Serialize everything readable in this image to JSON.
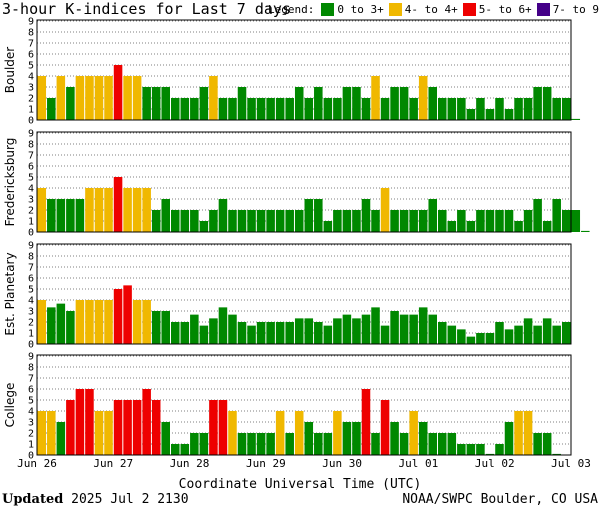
{
  "title": "3-hour K-indices for Last 7 days",
  "legend": {
    "label": "Legend:",
    "entries": [
      {
        "label": "0 to 3+",
        "color": "#008800"
      },
      {
        "label": "4- to 4+",
        "color": "#f0b800"
      },
      {
        "label": "5- to 6+",
        "color": "#ee0000"
      },
      {
        "label": "7- to 9",
        "color": "#440088"
      }
    ]
  },
  "footer": {
    "updated_label": "Updated",
    "updated_value": "2025 Jul  2 2130",
    "source": "NOAA/SWPC Boulder, CO USA"
  },
  "chart_data": [
    {
      "type": "bar",
      "ylabel": "Boulder",
      "ylim": [
        0,
        9
      ],
      "yticks": [
        "0",
        "1",
        "2",
        "3",
        "4",
        "5",
        "6",
        "7",
        "8",
        "9"
      ],
      "values": [
        4,
        2,
        4,
        3,
        4,
        4,
        4,
        4,
        5,
        4,
        4,
        3,
        3,
        3,
        2,
        2,
        2,
        3,
        4,
        2,
        2,
        3,
        2,
        2,
        2,
        2,
        2,
        3,
        2,
        3,
        2,
        2,
        3,
        3,
        2,
        4,
        2,
        3,
        3,
        2,
        4,
        3,
        2,
        2,
        2,
        1,
        2,
        1,
        2,
        1,
        2,
        2,
        3,
        3,
        2,
        2,
        0.1
      ]
    },
    {
      "type": "bar",
      "ylabel": "Fredericksburg",
      "ylim": [
        0,
        9
      ],
      "yticks": [
        "0",
        "1",
        "2",
        "3",
        "4",
        "5",
        "6",
        "7",
        "8",
        "9"
      ],
      "values": [
        4,
        3,
        3,
        3,
        3,
        4,
        4,
        4,
        5,
        4,
        4,
        4,
        2,
        3,
        2,
        2,
        2,
        1,
        2,
        3,
        2,
        2,
        2,
        2,
        2,
        2,
        2,
        2,
        3,
        3,
        1,
        2,
        2,
        2,
        3,
        2,
        4,
        2,
        2,
        2,
        2,
        3,
        2,
        1,
        2,
        1,
        2,
        2,
        2,
        2,
        1,
        2,
        3,
        1,
        3,
        2,
        2,
        0.1
      ]
    },
    {
      "type": "bar",
      "ylabel": "Est. Planetary",
      "ylim": [
        0,
        9
      ],
      "yticks": [
        "0",
        "1",
        "2",
        "3",
        "4",
        "5",
        "6",
        "7",
        "8",
        "9"
      ],
      "values": [
        4,
        3.33,
        3.67,
        3,
        4,
        4,
        4,
        4,
        5,
        5.33,
        4,
        4,
        3,
        3,
        2,
        2,
        2.67,
        1.67,
        2.33,
        3.33,
        2.67,
        2,
        1.67,
        2,
        2,
        2,
        2,
        2.33,
        2.33,
        2,
        1.67,
        2.33,
        2.67,
        2.33,
        2.67,
        3.33,
        1.67,
        3,
        2.67,
        2.67,
        3.33,
        2.67,
        2,
        1.67,
        1.33,
        0.67,
        1,
        1,
        2,
        1.33,
        1.67,
        2.33,
        1.67,
        2.33,
        1.67,
        2
      ]
    },
    {
      "type": "bar",
      "ylabel": "College",
      "ylim": [
        0,
        9
      ],
      "yticks": [
        "0",
        "1",
        "2",
        "3",
        "4",
        "5",
        "6",
        "7",
        "8",
        "9"
      ],
      "values": [
        4,
        4,
        3,
        5,
        6,
        6,
        4,
        4,
        5,
        5,
        5,
        6,
        5,
        3,
        1,
        1,
        2,
        2,
        5,
        5,
        4,
        2,
        2,
        2,
        2,
        4,
        2,
        4,
        3,
        2,
        2,
        4,
        3,
        3,
        6,
        2,
        5,
        3,
        2,
        4,
        3,
        2,
        2,
        2,
        1,
        1,
        1,
        0.1,
        1,
        3,
        4,
        4,
        2,
        2,
        0.1
      ]
    }
  ],
  "xaxis": {
    "title": "Coordinate Universal Time (UTC)",
    "ticks": [
      "Jun 26",
      "Jun 27",
      "Jun 28",
      "Jun 29",
      "Jun 30",
      "Jul 01",
      "Jul 02",
      "Jul 03"
    ]
  }
}
